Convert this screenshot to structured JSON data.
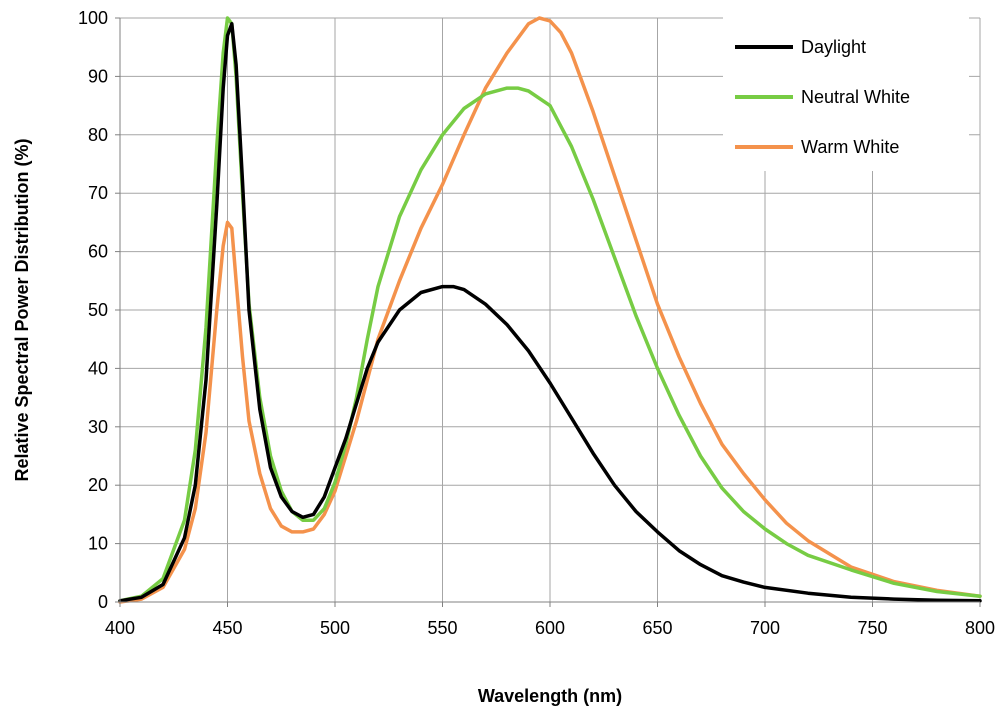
{
  "chart_data": {
    "type": "line",
    "xlabel": "Wavelength (nm)",
    "ylabel": "Relative  Spectral Power Distribution (%)",
    "xlim": [
      400,
      800
    ],
    "ylim": [
      0,
      100
    ],
    "xticks": [
      400,
      450,
      500,
      550,
      600,
      650,
      700,
      750,
      800
    ],
    "yticks": [
      0,
      10,
      20,
      30,
      40,
      50,
      60,
      70,
      80,
      90,
      100
    ],
    "grid": true,
    "legend_position": "top-right",
    "series": [
      {
        "name": "Daylight",
        "color": "#000000",
        "x": [
          400,
          410,
          420,
          430,
          435,
          440,
          445,
          448,
          450,
          452,
          454,
          457,
          460,
          465,
          470,
          475,
          480,
          485,
          490,
          495,
          500,
          505,
          510,
          515,
          520,
          530,
          540,
          550,
          555,
          560,
          570,
          580,
          590,
          600,
          610,
          620,
          630,
          640,
          650,
          660,
          670,
          680,
          690,
          700,
          720,
          740,
          760,
          780,
          800
        ],
        "y": [
          0.2,
          0.8,
          3,
          11,
          20,
          38,
          68,
          88,
          97,
          99,
          92,
          72,
          50,
          33,
          23,
          18,
          15.5,
          14.5,
          15,
          18,
          23,
          28,
          34,
          40,
          44.5,
          50,
          53,
          54,
          54,
          53.5,
          51,
          47.5,
          43,
          37.5,
          31.5,
          25.5,
          20,
          15.5,
          12,
          8.8,
          6.4,
          4.5,
          3.4,
          2.5,
          1.5,
          0.8,
          0.5,
          0.3,
          0.2
        ]
      },
      {
        "name": "Neutral White",
        "color": "#77cc44",
        "x": [
          400,
          410,
          420,
          430,
          435,
          440,
          445,
          448,
          450,
          452,
          454,
          457,
          460,
          465,
          470,
          475,
          480,
          485,
          490,
          495,
          500,
          505,
          510,
          515,
          520,
          530,
          540,
          550,
          560,
          570,
          580,
          585,
          590,
          600,
          610,
          620,
          630,
          640,
          650,
          660,
          670,
          680,
          690,
          700,
          710,
          720,
          740,
          760,
          780,
          800
        ],
        "y": [
          0.2,
          1,
          4,
          14,
          26,
          47,
          78,
          94,
          100,
          99,
          90,
          70,
          51,
          35,
          25,
          19,
          15.5,
          14,
          14,
          16,
          20.5,
          27,
          35,
          45,
          54,
          66,
          74,
          80,
          84.5,
          87,
          88,
          88,
          87.5,
          85,
          78,
          69,
          59,
          49,
          40,
          32,
          25,
          19.5,
          15.5,
          12.5,
          10,
          8,
          5.5,
          3.2,
          1.8,
          1
        ]
      },
      {
        "name": "Warm White",
        "color": "#f4924c",
        "x": [
          400,
          410,
          420,
          430,
          435,
          440,
          445,
          448,
          450,
          452,
          454,
          457,
          460,
          465,
          470,
          475,
          480,
          485,
          490,
          495,
          500,
          505,
          510,
          515,
          520,
          530,
          540,
          550,
          560,
          570,
          580,
          590,
          595,
          600,
          605,
          610,
          620,
          630,
          640,
          650,
          660,
          670,
          680,
          690,
          700,
          710,
          720,
          740,
          760,
          780,
          800
        ],
        "y": [
          0,
          0.5,
          2.5,
          9,
          16,
          29,
          50,
          61,
          65,
          64,
          55,
          42,
          31,
          22,
          16,
          13,
          12,
          12,
          12.5,
          15,
          19,
          25,
          31,
          38,
          45,
          55,
          64,
          71.5,
          80,
          88,
          94,
          99,
          100,
          99.5,
          97.5,
          94,
          84,
          73,
          62,
          51,
          42,
          34,
          27,
          22,
          17.5,
          13.5,
          10.5,
          6,
          3.5,
          2,
          1
        ]
      }
    ]
  }
}
